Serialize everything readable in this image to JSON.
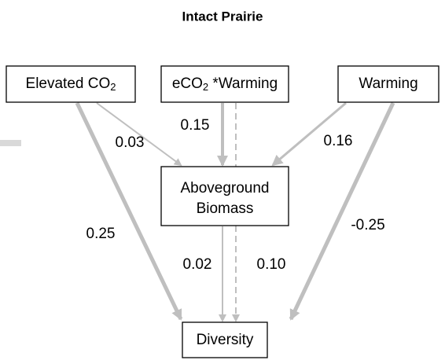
{
  "title": "Intact Prairie",
  "nodes": [
    {
      "parts": [
        {
          "text": "Elevated CO"
        },
        {
          "text": "2",
          "sub": true
        }
      ]
    },
    {
      "parts": [
        {
          "text": "eCO"
        },
        {
          "text": "2",
          "sub": true
        },
        {
          "text": " *Warming"
        }
      ]
    },
    {
      "parts": [
        {
          "text": "Warming"
        }
      ]
    },
    {
      "lines": [
        "Aboveground",
        "Biomass"
      ]
    },
    {
      "parts": [
        {
          "text": "Diversity"
        }
      ]
    }
  ],
  "edges": [
    {
      "label": "0.03"
    },
    {
      "label": "0.15"
    },
    {
      "label": "0.16"
    },
    {
      "label": "0.25"
    },
    {
      "label": "-0.25"
    },
    {
      "label": "0.02"
    },
    {
      "label": "0.10"
    }
  ]
}
